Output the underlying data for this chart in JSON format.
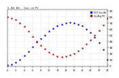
{
  "title": "S. Alt. Alt     Sun  on PV",
  "legend_blue": "HOT_SUN_ALT",
  "legend_red": "INC_ANGLE_PV",
  "plot_bg": "#ffffff",
  "grid_color": "#b0b0b0",
  "yticks": [
    0,
    10,
    20,
    30,
    40,
    50,
    60,
    70,
    80,
    90
  ],
  "ylim": [
    -2,
    92
  ],
  "xlim": [
    0,
    288
  ],
  "blue_x": [
    0,
    12,
    24,
    36,
    48,
    60,
    72,
    84,
    96,
    108,
    120,
    132,
    144,
    156,
    168,
    180,
    192,
    204,
    216,
    228,
    240,
    252,
    264,
    276,
    288
  ],
  "blue_y": [
    0,
    2,
    5,
    10,
    16,
    23,
    31,
    38,
    44,
    50,
    56,
    61,
    65,
    68,
    70,
    71,
    70,
    68,
    65,
    60,
    54,
    46,
    37,
    26,
    10
  ],
  "red_x": [
    0,
    12,
    24,
    36,
    48,
    60,
    72,
    84,
    96,
    108,
    120,
    132,
    144,
    156,
    168,
    180,
    192,
    204,
    216,
    228,
    240,
    252,
    264,
    276,
    288
  ],
  "red_y": [
    80,
    78,
    75,
    70,
    64,
    56,
    48,
    40,
    33,
    27,
    22,
    18,
    15,
    14,
    15,
    17,
    20,
    24,
    29,
    35,
    42,
    50,
    58,
    66,
    78
  ],
  "marker_size": 1.5
}
